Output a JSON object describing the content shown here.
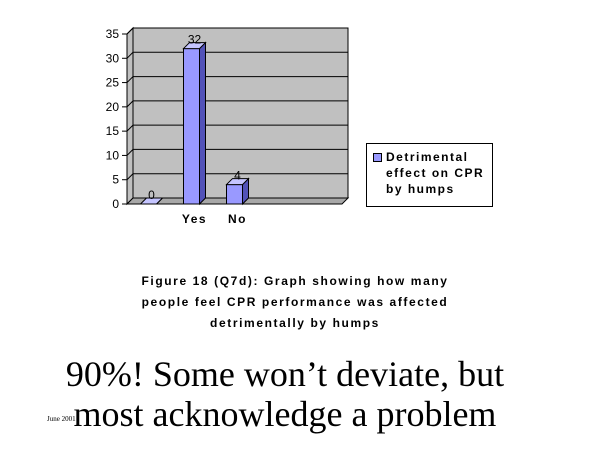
{
  "chart_data": {
    "type": "bar",
    "categories": [
      "",
      "Yes",
      "No",
      "",
      ""
    ],
    "series": [
      {
        "name": "Detrimental effect on CPR by humps",
        "values": [
          0,
          32,
          4,
          null,
          null
        ],
        "color": "#9999ff"
      }
    ],
    "data_labels": [
      "0",
      "32",
      "4",
      "",
      ""
    ],
    "ylim": [
      0,
      35
    ],
    "yticks": [
      0,
      5,
      10,
      15,
      20,
      25,
      30,
      35
    ],
    "grid": true,
    "three_d": true,
    "legend_position": "right"
  },
  "caption": {
    "line1": "Figure 18 (Q7d):  Graph showing how many",
    "line2": "people feel CPR performance was affected",
    "line3": "detrimentally by humps"
  },
  "headline": {
    "line1": "90%! Some won’t deviate, but",
    "line2": "most acknowledge a problem"
  },
  "footer": {
    "date": "June 2001"
  },
  "colors": {
    "bar_front": "#9999ff",
    "bar_side": "#5252b8",
    "bar_top": "#c5c5ff",
    "wall": "#c0c0c0"
  }
}
